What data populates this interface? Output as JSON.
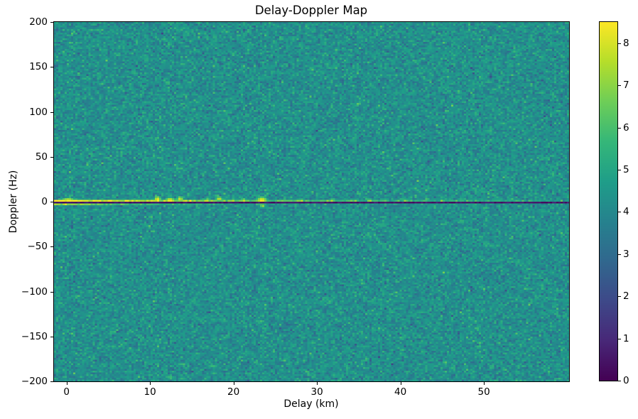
{
  "figure": {
    "background": "#ffffff"
  },
  "chart_data": {
    "type": "heatmap",
    "title": "Delay-Doppler Map",
    "xlabel": "Delay (km)",
    "ylabel": "Doppler (Hz)",
    "x_range": [
      -1.5,
      60.2
    ],
    "y_range": [
      -200,
      200
    ],
    "x_ticks": {
      "values": [
        0,
        10,
        20,
        30,
        40,
        50
      ],
      "labels": [
        "0",
        "10",
        "20",
        "30",
        "40",
        "50"
      ]
    },
    "y_ticks": {
      "values": [
        200,
        150,
        100,
        50,
        0,
        -50,
        -100,
        -150,
        -200
      ],
      "labels": [
        "200",
        "150",
        "100",
        "50",
        "0",
        "−50",
        "−100",
        "−150",
        "−200"
      ]
    },
    "colormap": {
      "name": "viridis",
      "stops": [
        "#440154",
        "#482878",
        "#3e4989",
        "#31688e",
        "#26828e",
        "#1f9e89",
        "#35b779",
        "#6ece58",
        "#b5de2b",
        "#fde725"
      ]
    },
    "colorbar": {
      "vmin": 0,
      "vmax": 8.5,
      "ticks": {
        "values": [
          0,
          1,
          2,
          3,
          4,
          5,
          6,
          7,
          8
        ],
        "labels": [
          "0",
          "1",
          "2",
          "3",
          "4",
          "5",
          "6",
          "7",
          "8"
        ]
      }
    },
    "grid": {
      "cols": 240,
      "rows": 200
    },
    "noise": {
      "mean": 4.25,
      "std": 0.58,
      "seed": 1337
    },
    "features": {
      "echo_line": {
        "doppler_hz": 2,
        "peak": 8.4,
        "floor": 4.3,
        "decay_km": 30,
        "flicker": 0.3,
        "flicker_boost": 1.4
      },
      "zero_doppler_notch": {
        "doppler_hz": 0,
        "min": 0.2,
        "max": 0.9
      },
      "mirror_line": {
        "doppler_hz": -2,
        "peak": 7.1,
        "floor": 4.2,
        "decay_km": 11,
        "flicker": 0.15,
        "flicker_boost": 1.0
      },
      "blobs": [
        {
          "delay_km": 0.2,
          "doppler_hz": 2,
          "value": 8.5,
          "sigma_km": 0.9,
          "sigma_hz": 3.5
        },
        {
          "delay_km": 10.9,
          "doppler_hz": 3,
          "value": 8.2,
          "sigma_km": 0.45,
          "sigma_hz": 3.5
        },
        {
          "delay_km": 12.4,
          "doppler_hz": 2,
          "value": 8.5,
          "sigma_km": 0.6,
          "sigma_hz": 4.0
        },
        {
          "delay_km": 13.6,
          "doppler_hz": 3,
          "value": 7.9,
          "sigma_km": 0.4,
          "sigma_hz": 3.5
        },
        {
          "delay_km": 16.9,
          "doppler_hz": 2,
          "value": 7.8,
          "sigma_km": 0.4,
          "sigma_hz": 3.0
        },
        {
          "delay_km": 18.3,
          "doppler_hz": 3,
          "value": 7.9,
          "sigma_km": 0.45,
          "sigma_hz": 3.0
        },
        {
          "delay_km": 21.2,
          "doppler_hz": 2,
          "value": 7.8,
          "sigma_km": 0.4,
          "sigma_hz": 3.0
        },
        {
          "delay_km": 23.4,
          "doppler_hz": 1,
          "value": 8.5,
          "sigma_km": 0.7,
          "sigma_hz": 5.0
        },
        {
          "delay_km": 23.5,
          "doppler_hz": -5,
          "value": 7.3,
          "sigma_km": 0.35,
          "sigma_hz": 2.2
        },
        {
          "delay_km": 28.1,
          "doppler_hz": 2,
          "value": 7.4,
          "sigma_km": 0.4,
          "sigma_hz": 2.5
        },
        {
          "delay_km": 31.8,
          "doppler_hz": 2,
          "value": 7.5,
          "sigma_km": 0.4,
          "sigma_hz": 2.5
        },
        {
          "delay_km": 36.4,
          "doppler_hz": 2,
          "value": 7.3,
          "sigma_km": 0.4,
          "sigma_hz": 2.4
        },
        {
          "delay_km": 40.6,
          "doppler_hz": 2,
          "value": 7.2,
          "sigma_km": 0.35,
          "sigma_hz": 2.4
        },
        {
          "delay_km": 44.9,
          "doppler_hz": 2,
          "value": 7.0,
          "sigma_km": 0.3,
          "sigma_hz": 2.3
        }
      ]
    }
  }
}
